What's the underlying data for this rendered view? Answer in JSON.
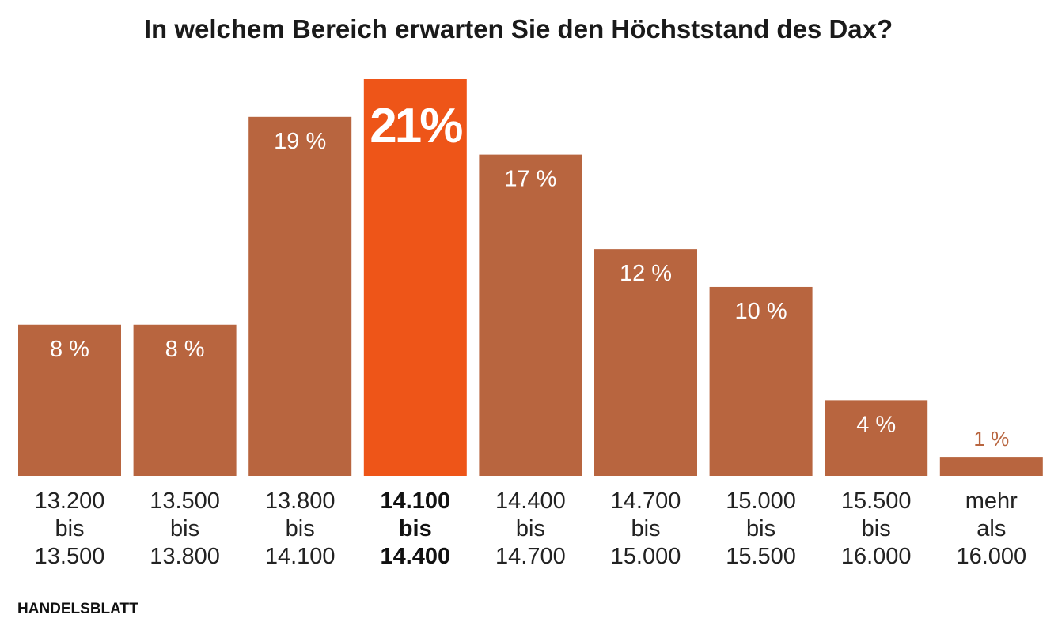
{
  "chart_data": {
    "type": "bar",
    "title": "In welchem Bereich erwarten Sie den Höchststand des Dax?",
    "categories": [
      [
        "13.200",
        "bis",
        "13.500"
      ],
      [
        "13.500",
        "bis",
        "13.800"
      ],
      [
        "13.800",
        "bis",
        "14.100"
      ],
      [
        "14.100",
        "bis",
        "14.400"
      ],
      [
        "14.400",
        "bis",
        "14.700"
      ],
      [
        "14.700",
        "bis",
        "15.000"
      ],
      [
        "15.000",
        "bis",
        "15.500"
      ],
      [
        "15.500",
        "bis",
        "16.000"
      ],
      [
        "mehr",
        "als",
        "16.000"
      ]
    ],
    "values": [
      8,
      8,
      19,
      21,
      17,
      12,
      10,
      4,
      1
    ],
    "labels": [
      "8 %",
      "8 %",
      "19 %",
      "21%",
      "17 %",
      "12 %",
      "10 %",
      "4 %",
      "1 %"
    ],
    "highlight_index": 3,
    "ylim": [
      0,
      21
    ],
    "colors": {
      "bar": "#b8653f",
      "highlight": "#ee5518"
    }
  },
  "source": "HANDELSBLATT"
}
